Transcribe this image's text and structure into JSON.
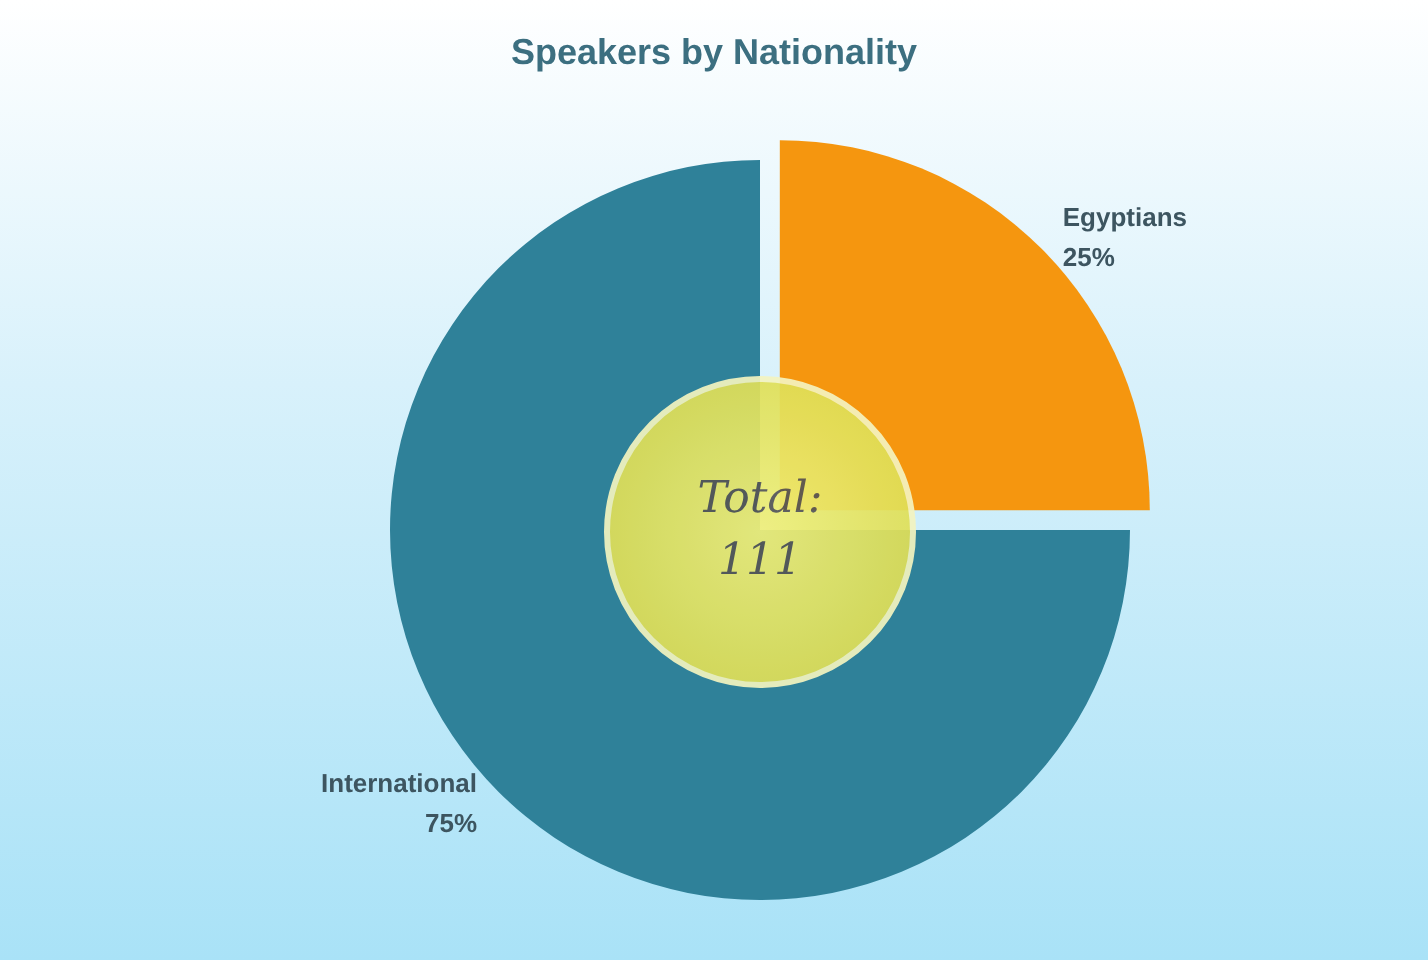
{
  "chart_data": {
    "type": "pie",
    "title": "Speakers by Nationality",
    "categories": [
      "Egyptians",
      "International"
    ],
    "values": [
      25,
      75
    ],
    "colors": [
      "#f5960f",
      "#2f8199"
    ],
    "value_labels": [
      "25%",
      "75%"
    ],
    "legend": false,
    "annotations": [
      "Total:\n111"
    ]
  }
}
